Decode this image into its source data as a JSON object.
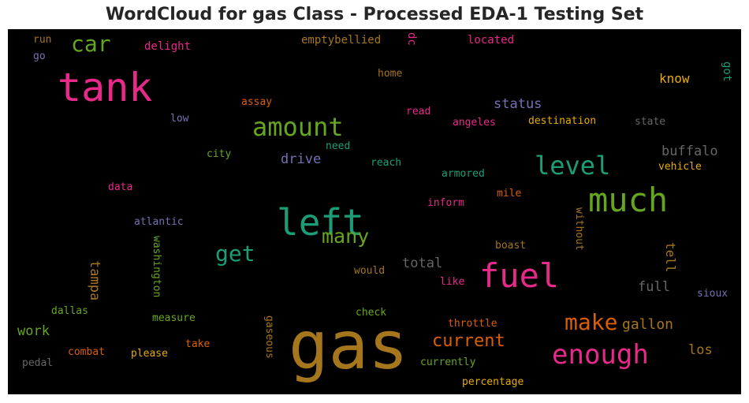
{
  "chart_data": {
    "type": "wordcloud",
    "title": "WordCloud for gas Class - Processed EDA-1 Testing Set",
    "background": "#000000",
    "words": [
      {
        "text": "gas",
        "color": "#a6761d"
      },
      {
        "text": "tank",
        "color": "#e7298a"
      },
      {
        "text": "left",
        "color": "#1b9e77"
      },
      {
        "text": "fuel",
        "color": "#e7298a"
      },
      {
        "text": "much",
        "color": "#66a61e"
      },
      {
        "text": "enough",
        "color": "#e7298a"
      },
      {
        "text": "amount",
        "color": "#66a61e"
      },
      {
        "text": "level",
        "color": "#1b9e77"
      },
      {
        "text": "car",
        "color": "#66a61e"
      },
      {
        "text": "make",
        "color": "#d95f02"
      },
      {
        "text": "many",
        "color": "#66a61e"
      },
      {
        "text": "get",
        "color": "#1b9e77"
      },
      {
        "text": "current",
        "color": "#d95f02"
      },
      {
        "text": "gallon",
        "color": "#a6761d"
      },
      {
        "text": "buffalo",
        "color": "#666666"
      },
      {
        "text": "status",
        "color": "#7570b3"
      },
      {
        "text": "total",
        "color": "#666666"
      },
      {
        "text": "tampa",
        "color": "#a6761d"
      },
      {
        "text": "full",
        "color": "#666666"
      },
      {
        "text": "los",
        "color": "#a6761d"
      },
      {
        "text": "tell",
        "color": "#a6761d"
      },
      {
        "text": "work",
        "color": "#66a61e"
      },
      {
        "text": "know",
        "color": "#e6ab02"
      },
      {
        "text": "drive",
        "color": "#7570b3"
      },
      {
        "text": "got",
        "color": "#1b9e77"
      },
      {
        "text": "emptybellied",
        "color": "#a6761d"
      },
      {
        "text": "dc",
        "color": "#e7298a"
      },
      {
        "text": "located",
        "color": "#e7298a"
      },
      {
        "text": "delight",
        "color": "#e7298a"
      },
      {
        "text": "run",
        "color": "#a6761d"
      },
      {
        "text": "go",
        "color": "#7570b3"
      },
      {
        "text": "home",
        "color": "#a6761d"
      },
      {
        "text": "assay",
        "color": "#d95f02"
      },
      {
        "text": "read",
        "color": "#e7298a"
      },
      {
        "text": "low",
        "color": "#7570b3"
      },
      {
        "text": "angeles",
        "color": "#e7298a"
      },
      {
        "text": "destination",
        "color": "#e6ab02"
      },
      {
        "text": "state",
        "color": "#666666"
      },
      {
        "text": "need",
        "color": "#1b9e77"
      },
      {
        "text": "city",
        "color": "#66a61e"
      },
      {
        "text": "reach",
        "color": "#1b9e77"
      },
      {
        "text": "armored",
        "color": "#1b9e77"
      },
      {
        "text": "vehicle",
        "color": "#e6ab02"
      },
      {
        "text": "data",
        "color": "#e7298a"
      },
      {
        "text": "mile",
        "color": "#d95f02"
      },
      {
        "text": "inform",
        "color": "#e7298a"
      },
      {
        "text": "atlantic",
        "color": "#7570b3"
      },
      {
        "text": "without",
        "color": "#a6761d"
      },
      {
        "text": "boast",
        "color": "#a6761d"
      },
      {
        "text": "washington",
        "color": "#66a61e"
      },
      {
        "text": "would",
        "color": "#a6761d"
      },
      {
        "text": "like",
        "color": "#e7298a"
      },
      {
        "text": "sioux",
        "color": "#7570b3"
      },
      {
        "text": "dallas",
        "color": "#66a61e"
      },
      {
        "text": "check",
        "color": "#66a61e"
      },
      {
        "text": "measure",
        "color": "#66a61e"
      },
      {
        "text": "gaseous",
        "color": "#a6761d"
      },
      {
        "text": "throttle",
        "color": "#d95f02"
      },
      {
        "text": "take",
        "color": "#d95f02"
      },
      {
        "text": "combat",
        "color": "#d95f02"
      },
      {
        "text": "please",
        "color": "#e6ab02"
      },
      {
        "text": "pedal",
        "color": "#666666"
      },
      {
        "text": "currently",
        "color": "#66a61e"
      },
      {
        "text": "percentage",
        "color": "#e6ab02"
      }
    ]
  }
}
